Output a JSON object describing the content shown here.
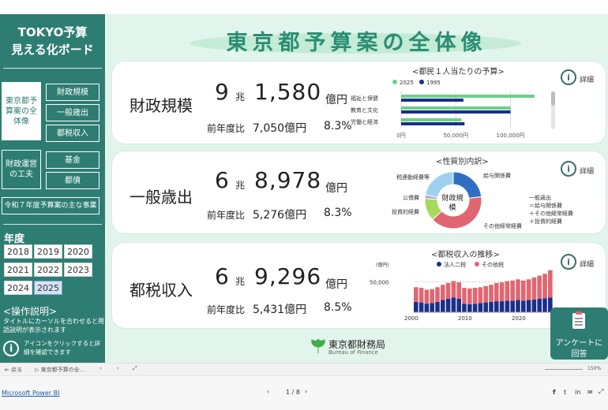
{
  "sidebar": {
    "title_line1": "TOKYO予算",
    "title_line2": "見える化ボード",
    "nav_active": "東京都予算案の全体像",
    "nav_btn1": "財政規模",
    "nav_btn2": "一般歳出",
    "nav_btn3": "都税収入",
    "nav_group2": "財政運営の工夫",
    "nav_btn4": "基金",
    "nav_btn5": "都債",
    "nav_btn6": "令和７年度予算案の主な事業",
    "year_label": "年度",
    "years": [
      "2018",
      "2019",
      "2020",
      "2021",
      "2022",
      "2023",
      "2024",
      "2025"
    ],
    "selected_year": "2025",
    "op_title": "<操作説明>",
    "op_text": "タイトルにカーソルを合わせると用語説明が表示されます",
    "op_text2": "アイコンをクリックすると詳細を確認できます"
  },
  "main": {
    "title": "東京都予算案の全体像"
  },
  "cards": {
    "c1": {
      "name": "財政規模",
      "cho": "9",
      "cho_unit": "兆",
      "oku": "1,580",
      "oku_unit": "億円",
      "prev_label": "前年度比",
      "prev_val": "7,050億円",
      "prev_pct": "8.3%",
      "detail": "詳細"
    },
    "c2": {
      "name": "一般歳出",
      "cho": "6",
      "cho_unit": "兆",
      "oku": "8,978",
      "oku_unit": "億円",
      "prev_label": "前年度比",
      "prev_val": "5,276億円",
      "prev_pct": "8.3%",
      "detail": "詳細"
    },
    "c3": {
      "name": "都税収入",
      "cho": "6",
      "cho_unit": "兆",
      "oku": "9,296",
      "oku_unit": "億円",
      "prev_label": "前年度比",
      "prev_val": "5,431億円",
      "prev_pct": "8.5%",
      "detail": "詳細"
    }
  },
  "chart1": {
    "title": "<都民１人当たりの予算>",
    "legend_a": "2025",
    "legend_b": "1995",
    "color_a": "#6ccf8c",
    "color_b": "#1a2f8a",
    "cat1": "福祉と保健",
    "cat2": "教育と文化",
    "cat3": "労働と経済",
    "tick0": "0円",
    "tick1": "50,000円",
    "tick2": "100,000円"
  },
  "chart2": {
    "title": "<性質別内訳>",
    "center": "財政規模",
    "lbl_kyuyo": "給与関係費",
    "lbl_zeiren": "税連動経費等",
    "lbl_koshi": "公債費",
    "lbl_toshi": "投資的経費",
    "lbl_sonota": "その他経常経費",
    "note1": "一般歳出",
    "note2": "＝給与関係費",
    "note3": "＋その他経常経費",
    "note4": "＋投資的経費"
  },
  "chart3": {
    "title": "<都税収入の推移>",
    "unit": "(億円)",
    "legend_a": "法人二税",
    "legend_b": "その他税",
    "color_a": "#1a2f8a",
    "color_b": "#e06671",
    "y_tick": "50,000",
    "x1": "2000",
    "x2": "2010",
    "x3": "2020"
  },
  "footer": {
    "org": "東京都財務局",
    "org_en": "Bureau of Finance",
    "survey_line1": "アンケートに",
    "survey_line2": "回答"
  },
  "pbi": {
    "back": "戻る",
    "tab": "東京都予算の全...",
    "link": "Microsoft Power BI",
    "page": "1 / 8",
    "zoom": "150%"
  },
  "chart_data": [
    {
      "type": "bar",
      "title": "<都民１人当たりの予算>",
      "categories": [
        "福祉と保健",
        "教育と文化",
        "労働と経済"
      ],
      "series": [
        {
          "name": "2025",
          "values": [
            122000,
            100000,
            55000
          ]
        },
        {
          "name": "1995",
          "values": [
            57000,
            100000,
            58000
          ]
        }
      ],
      "xlim": [
        0,
        130000
      ]
    },
    {
      "type": "pie",
      "title": "<性質別内訳>",
      "categories": [
        "給与関係費",
        "その他経常経費",
        "投資的経費",
        "公債費",
        "税連動経費等"
      ],
      "values": [
        23,
        40,
        13,
        2,
        22
      ]
    },
    {
      "type": "bar",
      "title": "<都税収入の推移>",
      "categories": [
        "2000",
        "2001",
        "2002",
        "2003",
        "2004",
        "2005",
        "2006",
        "2007",
        "2008",
        "2009",
        "2010",
        "2011",
        "2012",
        "2013",
        "2014",
        "2015",
        "2016",
        "2017",
        "2018",
        "2019",
        "2020",
        "2021",
        "2022",
        "2023",
        "2024",
        "2025"
      ],
      "series": [
        {
          "name": "法人二税",
          "values": [
            17000,
            16000,
            14000,
            15000,
            17000,
            20000,
            22000,
            24000,
            22000,
            14000,
            13000,
            14000,
            15000,
            16000,
            17000,
            18000,
            18000,
            19000,
            19000,
            20000,
            19000,
            20000,
            21000,
            22000,
            23000,
            24000
          ]
        },
        {
          "name": "その他税",
          "values": [
            24000,
            24000,
            23000,
            23000,
            24000,
            25000,
            26000,
            27000,
            27000,
            26000,
            26000,
            26000,
            26000,
            27000,
            28000,
            30000,
            31000,
            32000,
            33000,
            34000,
            33000,
            34000,
            36000,
            38000,
            40000,
            45000
          ]
        }
      ],
      "ylim": [
        0,
        75000
      ]
    }
  ]
}
